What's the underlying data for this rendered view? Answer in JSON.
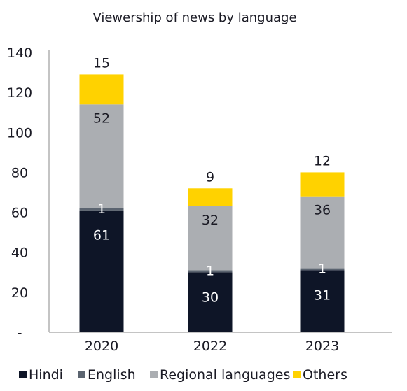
{
  "chart_data": {
    "type": "bar",
    "stacked": true,
    "title": "Viewership of news by language",
    "xlabel": "",
    "ylabel": "",
    "categories": [
      "2020",
      "2022",
      "2023"
    ],
    "ylim": [
      0,
      140
    ],
    "yticks": [
      0,
      20,
      40,
      60,
      80,
      100,
      120,
      140
    ],
    "ytick_labels": [
      "-",
      "20",
      "40",
      "60",
      "80",
      "100",
      "120",
      "140"
    ],
    "grid": false,
    "legend_position": "bottom",
    "series": [
      {
        "name": "Hindi",
        "values": [
          61,
          30,
          31
        ],
        "color": "#0e1527",
        "label_color": "#ffffff"
      },
      {
        "name": "English",
        "values": [
          1,
          1,
          1
        ],
        "color": "#5b6470",
        "label_color": "#ffffff"
      },
      {
        "name": "Regional languages",
        "values": [
          52,
          32,
          36
        ],
        "color": "#abaeb2",
        "label_color": "#1a1a24"
      },
      {
        "name": "Others",
        "values": [
          15,
          9,
          12
        ],
        "color": "#ffd200",
        "label_color": "#1a1a24"
      }
    ]
  }
}
